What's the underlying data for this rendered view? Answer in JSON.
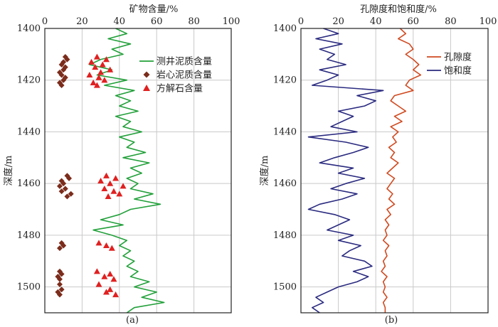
{
  "chart_data": [
    {
      "type": "scatter",
      "panel_label": "(a)",
      "title": "矿物含量/%",
      "ylabel": "深度/m",
      "x_ticks": [
        "0",
        "20",
        "40",
        "60",
        "80",
        "100"
      ],
      "y_ticks": [
        "1400",
        "1420",
        "1440",
        "1460",
        "1480",
        "1500"
      ],
      "xlim": [
        0,
        100
      ],
      "ylim": [
        1400,
        1510
      ],
      "legend": [
        "测井泥质含量",
        "岩心泥质含量",
        "方解石含量"
      ],
      "colors": [
        "#22a03a",
        "#7b2c1b",
        "#e02020"
      ],
      "series": [
        {
          "name": "测井泥质含量",
          "kind": "line",
          "depth": [
            1400,
            1402,
            1404,
            1406,
            1408,
            1410,
            1412,
            1414,
            1416,
            1418,
            1420,
            1422,
            1424,
            1426,
            1428,
            1430,
            1432,
            1434,
            1436,
            1438,
            1440,
            1442,
            1444,
            1446,
            1448,
            1450,
            1452,
            1454,
            1456,
            1458,
            1460,
            1462,
            1464,
            1466,
            1468,
            1470,
            1472,
            1474,
            1476,
            1478,
            1480,
            1482,
            1484,
            1486,
            1488,
            1490,
            1492,
            1494,
            1496,
            1498,
            1500,
            1502,
            1504,
            1506,
            1508,
            1510
          ],
          "value": [
            38,
            44,
            34,
            46,
            36,
            42,
            30,
            24,
            36,
            28,
            44,
            32,
            48,
            38,
            46,
            40,
            50,
            38,
            46,
            42,
            52,
            40,
            48,
            44,
            54,
            42,
            56,
            46,
            52,
            44,
            50,
            46,
            58,
            48,
            62,
            46,
            40,
            30,
            42,
            26,
            36,
            44,
            40,
            46,
            42,
            48,
            44,
            50,
            46,
            56,
            48,
            60,
            52,
            64,
            48,
            44
          ]
        },
        {
          "name": "岩心泥质含量",
          "kind": "diamond",
          "depth": [
            1411,
            1412,
            1413,
            1414,
            1415,
            1416,
            1417,
            1418,
            1419,
            1420,
            1421,
            1422,
            1457,
            1458,
            1459,
            1460,
            1461,
            1462,
            1463,
            1464,
            1465,
            1483,
            1484,
            1485,
            1494,
            1495,
            1496,
            1497,
            1499,
            1501,
            1502,
            1503
          ],
          "value": [
            11,
            12,
            10,
            9,
            11,
            10,
            8,
            9,
            11,
            10,
            8,
            9,
            12,
            13,
            9,
            10,
            8,
            11,
            9,
            14,
            12,
            9,
            10,
            8,
            8,
            9,
            7,
            8,
            8,
            9,
            7,
            8
          ]
        },
        {
          "name": "方解石含量",
          "kind": "triangle",
          "depth": [
            1411,
            1412,
            1413,
            1414,
            1415,
            1416,
            1417,
            1418,
            1419,
            1420,
            1421,
            1422,
            1457,
            1458,
            1459,
            1460,
            1461,
            1462,
            1463,
            1464,
            1465,
            1483,
            1484,
            1485,
            1494,
            1495,
            1496,
            1497,
            1499,
            1501,
            1502,
            1503
          ],
          "value": [
            28,
            33,
            25,
            31,
            27,
            35,
            30,
            24,
            29,
            32,
            26,
            28,
            33,
            38,
            30,
            35,
            42,
            32,
            37,
            40,
            34,
            29,
            33,
            36,
            28,
            35,
            32,
            37,
            29,
            35,
            33,
            38
          ]
        }
      ]
    },
    {
      "type": "line",
      "panel_label": "(b)",
      "title": "孔隙度和饱和度/%",
      "ylabel": "深度/m",
      "x_ticks": [
        "0",
        "20",
        "40",
        "60",
        "80",
        "100"
      ],
      "y_ticks": [
        "1400",
        "1420",
        "1440",
        "1460",
        "1480",
        "1500"
      ],
      "xlim": [
        0,
        100
      ],
      "ylim": [
        1400,
        1510
      ],
      "legend": [
        "孔隙度",
        "饱和度"
      ],
      "colors": [
        "#d04a20",
        "#2a2a80"
      ],
      "series": [
        {
          "name": "孔隙度",
          "depth": [
            1400,
            1402,
            1404,
            1406,
            1408,
            1410,
            1412,
            1414,
            1416,
            1418,
            1420,
            1422,
            1424,
            1426,
            1428,
            1430,
            1432,
            1434,
            1436,
            1438,
            1440,
            1442,
            1444,
            1446,
            1448,
            1450,
            1452,
            1454,
            1456,
            1458,
            1460,
            1462,
            1464,
            1466,
            1468,
            1470,
            1472,
            1474,
            1476,
            1478,
            1480,
            1482,
            1484,
            1486,
            1488,
            1490,
            1492,
            1494,
            1496,
            1498,
            1500,
            1502,
            1504,
            1506,
            1508,
            1510
          ],
          "value": [
            53,
            56,
            52,
            58,
            60,
            56,
            60,
            63,
            60,
            64,
            58,
            56,
            60,
            50,
            48,
            52,
            56,
            50,
            54,
            48,
            52,
            49,
            51,
            47,
            50,
            48,
            52,
            49,
            46,
            50,
            48,
            46,
            49,
            47,
            50,
            46,
            48,
            45,
            47,
            45,
            46,
            44,
            47,
            45,
            46,
            44,
            45,
            43,
            46,
            44,
            45,
            44,
            46,
            44,
            45,
            45
          ]
        },
        {
          "name": "饱和度",
          "depth": [
            1400,
            1402,
            1404,
            1406,
            1408,
            1410,
            1412,
            1414,
            1416,
            1418,
            1420,
            1422,
            1424,
            1426,
            1428,
            1430,
            1432,
            1434,
            1436,
            1438,
            1440,
            1442,
            1444,
            1446,
            1448,
            1450,
            1452,
            1454,
            1456,
            1458,
            1460,
            1462,
            1464,
            1466,
            1468,
            1470,
            1472,
            1474,
            1476,
            1478,
            1480,
            1482,
            1484,
            1486,
            1488,
            1490,
            1492,
            1494,
            1496,
            1498,
            1500,
            1502,
            1504,
            1506,
            1508,
            1510
          ],
          "value": [
            12,
            20,
            8,
            22,
            10,
            18,
            14,
            24,
            10,
            20,
            14,
            6,
            44,
            30,
            40,
            34,
            20,
            28,
            22,
            16,
            30,
            4,
            24,
            36,
            28,
            18,
            10,
            28,
            20,
            34,
            24,
            16,
            30,
            22,
            10,
            4,
            18,
            26,
            20,
            14,
            28,
            20,
            32,
            26,
            22,
            34,
            38,
            28,
            36,
            30,
            20,
            14,
            8,
            12,
            6,
            10
          ]
        }
      ]
    }
  ]
}
